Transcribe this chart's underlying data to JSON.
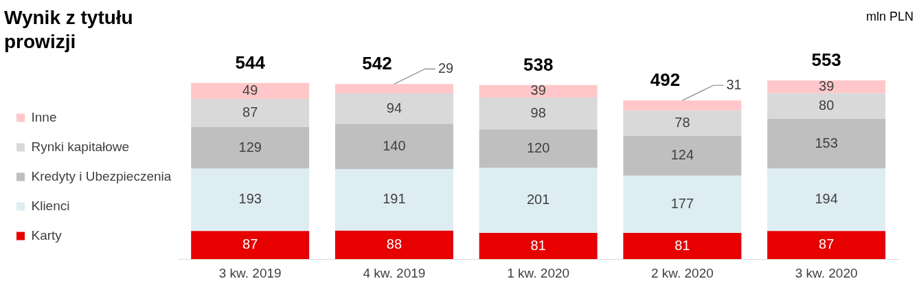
{
  "chart_data": {
    "type": "bar",
    "title": "Wynik z tytułu prowizji",
    "stacked": true,
    "data_labels": true,
    "legend": "left",
    "grid": false,
    "tick_labels": "x",
    "categories": [
      "3 kw. 2019",
      "4 kw. 2019",
      "1 kw. 2020",
      "2 kw. 2020",
      "3 kw. 2020"
    ],
    "series": [
      {
        "name": "Karty",
        "color": "#e60000",
        "values": [
          87,
          88,
          81,
          81,
          87
        ]
      },
      {
        "name": "Klienci",
        "color": "#deedf2",
        "values": [
          193,
          191,
          201,
          177,
          194
        ]
      },
      {
        "name": "Kredyty i Ubezpieczenia",
        "color": "#bfbfbf",
        "values": [
          129,
          140,
          120,
          124,
          153
        ]
      },
      {
        "name": "Rynki kapitałowe",
        "color": "#d9d9d9",
        "values": [
          87,
          94,
          98,
          78,
          80
        ]
      },
      {
        "name": "Inne",
        "color": "#ffc7c9",
        "values": [
          49,
          29,
          39,
          31,
          39
        ]
      }
    ],
    "totals": [
      "544",
      "542",
      "538",
      "492",
      "553"
    ],
    "annotations": [
      "mln PLN"
    ]
  }
}
